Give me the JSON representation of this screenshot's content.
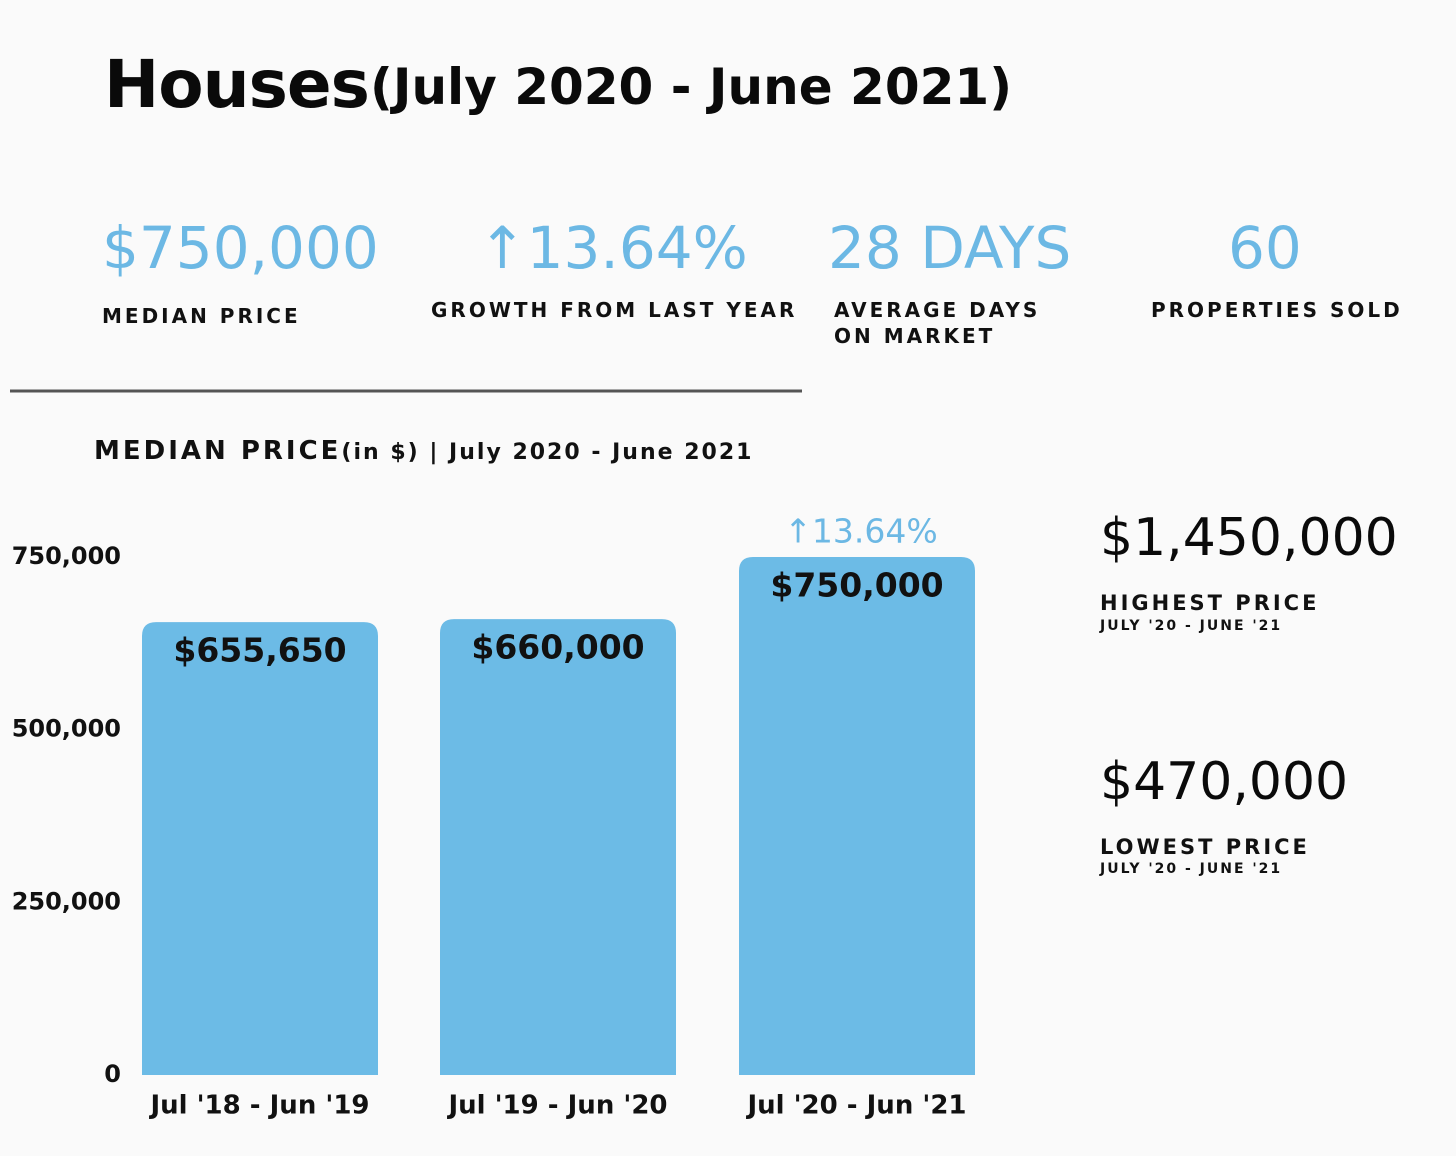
{
  "header": {
    "title": "Houses",
    "subtitle": "(July 2020 - June 2021)"
  },
  "stats": [
    {
      "value": "$750,000",
      "label": "MEDIAN PRICE"
    },
    {
      "value": "↑13.64%",
      "label": "GROWTH FROM LAST YEAR"
    },
    {
      "value": "28 DAYS",
      "label": "AVERAGE DAYS ON MARKET"
    },
    {
      "value": "60",
      "label": "PROPERTIES SOLD"
    }
  ],
  "side_stats": [
    {
      "value": "$1,450,000",
      "label": "HIGHEST PRICE",
      "period": "JULY '20 - JUNE '21"
    },
    {
      "value": "$470,000",
      "label": "LOWEST PRICE",
      "period": "JULY '20 - JUNE '21"
    }
  ],
  "chart_data": {
    "type": "bar",
    "title": "MEDIAN PRICE",
    "subtitle": "(in $) | July 2020 - June 2021",
    "categories": [
      "Jul '18 - Jun '19",
      "Jul '19 - Jun '20",
      "Jul '20 - Jun '21"
    ],
    "values": [
      655650,
      660000,
      750000
    ],
    "value_labels": [
      "$655,650",
      "$660,000",
      "$750,000"
    ],
    "color": "#6cbbe6",
    "annotation": "↑13.64%",
    "ylim": [
      0,
      750000
    ],
    "yticks": [
      0,
      {
        "value": 250000,
        "label": "250,000"
      },
      {
        "value": 500000,
        "label": "500,000"
      },
      {
        "value": 750000,
        "label": "750,000"
      }
    ],
    "grid": false
  }
}
